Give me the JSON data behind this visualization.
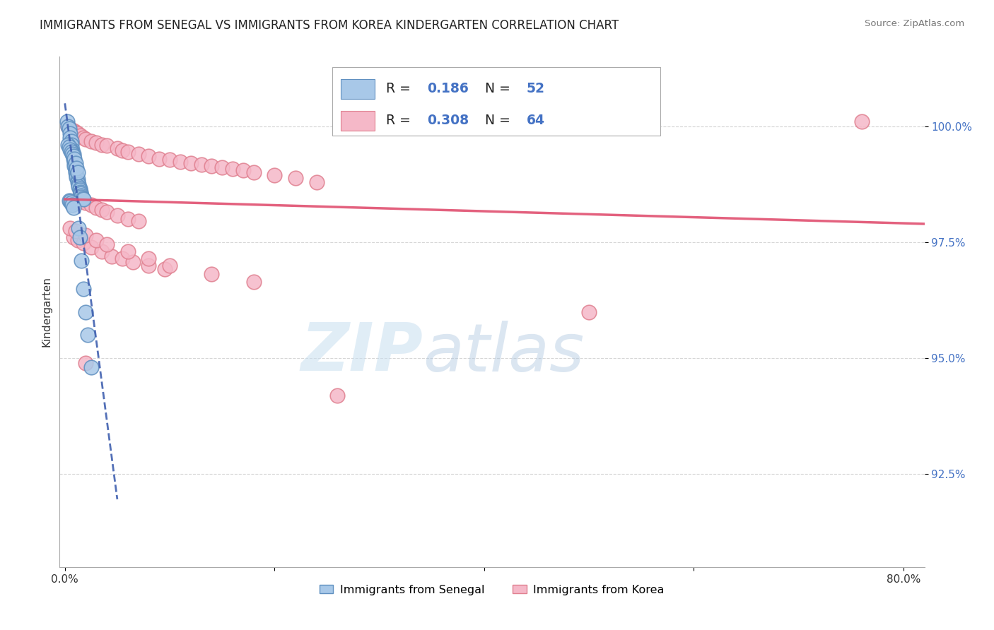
{
  "title": "IMMIGRANTS FROM SENEGAL VS IMMIGRANTS FROM KOREA KINDERGARTEN CORRELATION CHART",
  "source": "Source: ZipAtlas.com",
  "ylabel": "Kindergarten",
  "x_tick_labels": [
    "0.0%",
    "",
    "",
    "",
    "80.0%"
  ],
  "x_tick_positions": [
    0.0,
    0.2,
    0.4,
    0.6,
    0.8
  ],
  "y_tick_labels": [
    "92.5%",
    "95.0%",
    "97.5%",
    "100.0%"
  ],
  "y_tick_positions": [
    0.925,
    0.95,
    0.975,
    1.0
  ],
  "xlim": [
    -0.005,
    0.82
  ],
  "ylim": [
    0.905,
    1.015
  ],
  "senegal_R": 0.186,
  "senegal_N": 52,
  "korea_R": 0.308,
  "korea_N": 64,
  "watermark_zip": "ZIP",
  "watermark_atlas": "atlas",
  "legend_labels": [
    "Immigrants from Senegal",
    "Immigrants from Korea"
  ],
  "senegal_color": "#a8c8e8",
  "korea_color": "#f5b8c8",
  "senegal_edge_color": "#6090c0",
  "korea_edge_color": "#e08090",
  "senegal_line_color": "#4060b0",
  "korea_line_color": "#e05070",
  "grid_color": "#cccccc",
  "title_fontsize": 12,
  "senegal_x": [
    0.002,
    0.003,
    0.004,
    0.005,
    0.005,
    0.006,
    0.006,
    0.007,
    0.007,
    0.008,
    0.008,
    0.009,
    0.009,
    0.01,
    0.01,
    0.01,
    0.011,
    0.011,
    0.012,
    0.012,
    0.013,
    0.013,
    0.014,
    0.014,
    0.015,
    0.015,
    0.016,
    0.016,
    0.017,
    0.018,
    0.003,
    0.004,
    0.005,
    0.006,
    0.007,
    0.008,
    0.009,
    0.01,
    0.011,
    0.012,
    0.004,
    0.005,
    0.006,
    0.007,
    0.008,
    0.013,
    0.014,
    0.016,
    0.018,
    0.02,
    0.022,
    0.025
  ],
  "senegal_y": [
    1.001,
    1.0,
    0.9995,
    0.9985,
    0.9975,
    0.9968,
    0.996,
    0.995,
    0.9945,
    0.994,
    0.993,
    0.992,
    0.9915,
    0.991,
    0.9905,
    0.99,
    0.9895,
    0.989,
    0.9885,
    0.988,
    0.9875,
    0.987,
    0.9865,
    0.9862,
    0.9858,
    0.9855,
    0.985,
    0.9848,
    0.9845,
    0.9843,
    0.996,
    0.9955,
    0.995,
    0.9945,
    0.994,
    0.9935,
    0.993,
    0.992,
    0.991,
    0.99,
    0.984,
    0.9838,
    0.9835,
    0.983,
    0.9825,
    0.978,
    0.976,
    0.971,
    0.965,
    0.96,
    0.955,
    0.948
  ],
  "korea_x": [
    0.003,
    0.005,
    0.008,
    0.01,
    0.012,
    0.015,
    0.018,
    0.02,
    0.025,
    0.03,
    0.035,
    0.04,
    0.05,
    0.055,
    0.06,
    0.07,
    0.08,
    0.09,
    0.1,
    0.11,
    0.12,
    0.13,
    0.14,
    0.15,
    0.16,
    0.17,
    0.18,
    0.2,
    0.22,
    0.24,
    0.01,
    0.015,
    0.02,
    0.025,
    0.03,
    0.035,
    0.04,
    0.05,
    0.06,
    0.07,
    0.008,
    0.012,
    0.018,
    0.025,
    0.035,
    0.045,
    0.055,
    0.065,
    0.08,
    0.095,
    0.005,
    0.01,
    0.02,
    0.03,
    0.04,
    0.06,
    0.08,
    0.1,
    0.14,
    0.18,
    0.5,
    0.02,
    0.26,
    0.76
  ],
  "korea_y": [
    1.0,
    0.9995,
    0.999,
    0.9988,
    0.9985,
    0.998,
    0.9975,
    0.9972,
    0.9968,
    0.9965,
    0.996,
    0.9958,
    0.9952,
    0.9948,
    0.9945,
    0.994,
    0.9935,
    0.993,
    0.9928,
    0.9924,
    0.992,
    0.9918,
    0.9914,
    0.9912,
    0.9908,
    0.9905,
    0.99,
    0.9895,
    0.9888,
    0.988,
    0.984,
    0.9838,
    0.9835,
    0.983,
    0.9825,
    0.982,
    0.9815,
    0.9808,
    0.98,
    0.9795,
    0.976,
    0.9755,
    0.9748,
    0.974,
    0.973,
    0.972,
    0.9715,
    0.9708,
    0.97,
    0.9692,
    0.978,
    0.9775,
    0.9765,
    0.9755,
    0.9745,
    0.973,
    0.9715,
    0.97,
    0.9682,
    0.9665,
    0.96,
    0.949,
    0.942,
    1.001
  ]
}
